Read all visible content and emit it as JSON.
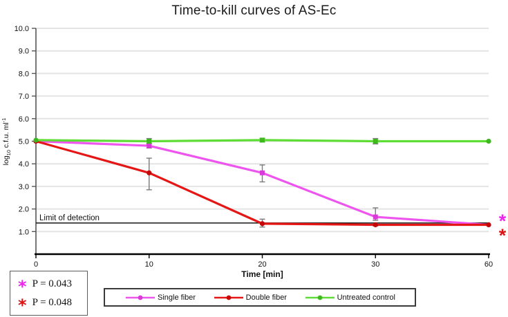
{
  "title": "Time-to-kill curves of AS-Ec",
  "chart_data": {
    "type": "line",
    "title": "Time-to-kill curves of AS-Ec",
    "xlabel": "Time [min]",
    "ylabel": "log10 c.f.u. ml-1",
    "ylabel_parts": {
      "prefix": "log",
      "sub": "10",
      "mid": " c.f.u. ml",
      "sup": "-1"
    },
    "x": [
      0,
      10,
      20,
      30,
      60
    ],
    "x_tick_labels": [
      "0",
      "10",
      "20",
      "30",
      "60"
    ],
    "ylim": [
      0,
      10
    ],
    "y_ticks": [
      1,
      2,
      3,
      4,
      5,
      6,
      7,
      8,
      9,
      10
    ],
    "y_tick_labels": [
      "1.0",
      "2.0",
      "3.0",
      "4.0",
      "5.0",
      "6.0",
      "7.0",
      "8.0",
      "9.0",
      "10.0"
    ],
    "grid": true,
    "legend_position": "bottom",
    "series": [
      {
        "name": "Single fiber",
        "color": "#ee55ee",
        "marker_color": "#d93bd9",
        "marker": "square",
        "values": [
          5.0,
          4.8,
          3.6,
          1.65,
          1.3
        ],
        "err_up": [
          0,
          0.1,
          0.35,
          0.4,
          0
        ],
        "err_down": [
          0,
          0.1,
          0.4,
          0.15,
          0
        ]
      },
      {
        "name": "Double fiber",
        "color": "#e51616",
        "marker_color": "#c40808",
        "marker": "circle",
        "values": [
          5.0,
          3.6,
          1.35,
          1.3,
          1.3
        ],
        "err_up": [
          0,
          0.65,
          0.2,
          0.05,
          0
        ],
        "err_down": [
          0,
          0.75,
          0.15,
          0.05,
          0
        ]
      },
      {
        "name": "Untreated control",
        "color": "#5ddd35",
        "marker_color": "#3eb81c",
        "marker": "square",
        "values": [
          5.05,
          5.0,
          5.05,
          5.0,
          5.0
        ],
        "err_up": [
          0,
          0.12,
          0.08,
          0.12,
          0
        ],
        "err_down": [
          0,
          0.12,
          0.08,
          0.12,
          0
        ]
      }
    ],
    "annotations": {
      "limit_line": {
        "label": "Limit of detection",
        "value": 1.38
      },
      "significance": [
        {
          "symbol": "*",
          "color": "#ee22ee",
          "p_label": "P = 0.043"
        },
        {
          "symbol": "*",
          "color": "#dd1111",
          "p_label": "P = 0.048"
        }
      ]
    }
  }
}
